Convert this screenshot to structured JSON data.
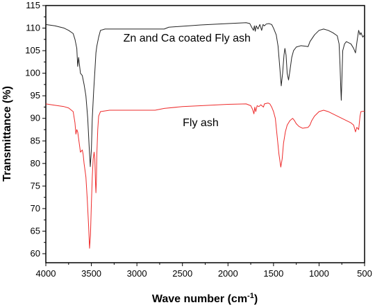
{
  "chart_data": {
    "type": "line",
    "xlabel": "Wave number (cm",
    "xlabel_sup": "-1",
    "xlabel_close": ")",
    "ylabel": "Transmittance (%)",
    "xlim": [
      4000,
      500
    ],
    "ylim": [
      58,
      115
    ],
    "x_ticks": [
      "4000",
      "3500",
      "3000",
      "2500",
      "2000",
      "1500",
      "1000",
      "500"
    ],
    "y_ticks": [
      "60",
      "65",
      "70",
      "75",
      "80",
      "85",
      "90",
      "95",
      "100",
      "105",
      "110",
      "115"
    ],
    "grid": false,
    "annotations": [
      {
        "text": "Zn and Ca coated Fly ash",
        "x": 2450,
        "y": 107
      },
      {
        "text": "Fly ash",
        "x": 2300,
        "y": 88.3
      }
    ],
    "series": [
      {
        "color": "#222222",
        "points": [
          [
            4000,
            110.8
          ],
          [
            3900,
            110.5
          ],
          [
            3800,
            110.0
          ],
          [
            3750,
            109.5
          ],
          [
            3700,
            108.8
          ],
          [
            3680,
            107.5
          ],
          [
            3660,
            105.5
          ],
          [
            3650,
            101.5
          ],
          [
            3640,
            103.5
          ],
          [
            3620,
            100.0
          ],
          [
            3600,
            99.5
          ],
          [
            3580,
            97.5
          ],
          [
            3560,
            95.0
          ],
          [
            3540,
            90.0
          ],
          [
            3525,
            84.0
          ],
          [
            3512,
            79.3
          ],
          [
            3500,
            83.0
          ],
          [
            3490,
            90.0
          ],
          [
            3475,
            96.0
          ],
          [
            3460,
            101.0
          ],
          [
            3450,
            104.5
          ],
          [
            3440,
            106.0
          ],
          [
            3420,
            108.0
          ],
          [
            3400,
            109.5
          ],
          [
            3350,
            109.8
          ],
          [
            3000,
            109.8
          ],
          [
            2700,
            109.8
          ],
          [
            2650,
            110.2
          ],
          [
            2300,
            110.7
          ],
          [
            2000,
            111.0
          ],
          [
            1800,
            111.2
          ],
          [
            1760,
            111.0
          ],
          [
            1740,
            110.2
          ],
          [
            1720,
            109.5
          ],
          [
            1710,
            110.5
          ],
          [
            1700,
            109.3
          ],
          [
            1690,
            110.5
          ],
          [
            1670,
            109.8
          ],
          [
            1650,
            110.8
          ],
          [
            1630,
            109.5
          ],
          [
            1615,
            110.8
          ],
          [
            1600,
            110.5
          ],
          [
            1580,
            110.9
          ],
          [
            1550,
            111.0
          ],
          [
            1520,
            110.8
          ],
          [
            1500,
            110.0
          ],
          [
            1470,
            108.5
          ],
          [
            1450,
            106.0
          ],
          [
            1430,
            101.0
          ],
          [
            1415,
            97.2
          ],
          [
            1400,
            100.0
          ],
          [
            1385,
            104.0
          ],
          [
            1375,
            105.5
          ],
          [
            1362,
            104.0
          ],
          [
            1350,
            100.0
          ],
          [
            1335,
            98.5
          ],
          [
            1320,
            100.5
          ],
          [
            1300,
            103.5
          ],
          [
            1280,
            105.0
          ],
          [
            1250,
            105.8
          ],
          [
            1200,
            106.1
          ],
          [
            1150,
            106.0
          ],
          [
            1120,
            105.9
          ],
          [
            1100,
            107.0
          ],
          [
            1050,
            108.5
          ],
          [
            1000,
            109.5
          ],
          [
            950,
            109.8
          ],
          [
            900,
            109.5
          ],
          [
            850,
            109.0
          ],
          [
            800,
            108.3
          ],
          [
            780,
            106.5
          ],
          [
            770,
            102.0
          ],
          [
            762,
            97.0
          ],
          [
            756,
            94.0
          ],
          [
            750,
            98.0
          ],
          [
            740,
            105.0
          ],
          [
            720,
            106.5
          ],
          [
            700,
            107.0
          ],
          [
            650,
            106.5
          ],
          [
            620,
            105.5
          ],
          [
            600,
            104.5
          ],
          [
            580,
            107.5
          ],
          [
            565,
            109.5
          ],
          [
            550,
            108.5
          ],
          [
            540,
            109.0
          ],
          [
            520,
            108.0
          ],
          [
            500,
            108.5
          ]
        ]
      },
      {
        "color": "#ee2a2a",
        "points": [
          [
            4000,
            93.2
          ],
          [
            3900,
            92.9
          ],
          [
            3800,
            92.6
          ],
          [
            3750,
            92.3
          ],
          [
            3700,
            91.5
          ],
          [
            3680,
            89.0
          ],
          [
            3670,
            86.5
          ],
          [
            3660,
            87.5
          ],
          [
            3650,
            87.0
          ],
          [
            3640,
            85.5
          ],
          [
            3630,
            84.0
          ],
          [
            3620,
            82.5
          ],
          [
            3600,
            83.0
          ],
          [
            3590,
            82.0
          ],
          [
            3580,
            80.0
          ],
          [
            3560,
            77.0
          ],
          [
            3545,
            72.0
          ],
          [
            3530,
            66.0
          ],
          [
            3520,
            61.2
          ],
          [
            3510,
            64.0
          ],
          [
            3500,
            71.0
          ],
          [
            3490,
            77.0
          ],
          [
            3480,
            81.0
          ],
          [
            3470,
            82.5
          ],
          [
            3462,
            81.0
          ],
          [
            3455,
            76.0
          ],
          [
            3450,
            73.5
          ],
          [
            3445,
            76.0
          ],
          [
            3440,
            82.0
          ],
          [
            3430,
            87.5
          ],
          [
            3420,
            90.5
          ],
          [
            3400,
            91.5
          ],
          [
            3300,
            91.8
          ],
          [
            3000,
            91.8
          ],
          [
            2800,
            91.8
          ],
          [
            2700,
            92.2
          ],
          [
            2500,
            92.6
          ],
          [
            2300,
            92.8
          ],
          [
            2000,
            93.1
          ],
          [
            1800,
            93.2
          ],
          [
            1750,
            92.8
          ],
          [
            1730,
            92.0
          ],
          [
            1715,
            91.0
          ],
          [
            1705,
            92.5
          ],
          [
            1695,
            91.5
          ],
          [
            1680,
            92.8
          ],
          [
            1660,
            92.6
          ],
          [
            1640,
            93.0
          ],
          [
            1610,
            92.5
          ],
          [
            1600,
            93.2
          ],
          [
            1560,
            93.4
          ],
          [
            1540,
            93.2
          ],
          [
            1520,
            92.5
          ],
          [
            1500,
            91.5
          ],
          [
            1480,
            90.0
          ],
          [
            1460,
            86.0
          ],
          [
            1440,
            82.0
          ],
          [
            1420,
            79.2
          ],
          [
            1405,
            81.0
          ],
          [
            1390,
            84.5
          ],
          [
            1370,
            87.0
          ],
          [
            1350,
            88.5
          ],
          [
            1320,
            89.5
          ],
          [
            1290,
            90.0
          ],
          [
            1270,
            89.5
          ],
          [
            1250,
            88.8
          ],
          [
            1220,
            88.2
          ],
          [
            1180,
            87.8
          ],
          [
            1150,
            87.9
          ],
          [
            1120,
            88.0
          ],
          [
            1100,
            88.5
          ],
          [
            1080,
            89.5
          ],
          [
            1050,
            90.5
          ],
          [
            1000,
            91.5
          ],
          [
            950,
            91.8
          ],
          [
            900,
            91.5
          ],
          [
            850,
            91.0
          ],
          [
            800,
            90.5
          ],
          [
            750,
            90.0
          ],
          [
            700,
            89.5
          ],
          [
            650,
            89.0
          ],
          [
            620,
            88.5
          ],
          [
            600,
            87.0
          ],
          [
            585,
            88.0
          ],
          [
            565,
            87.5
          ],
          [
            550,
            90.5
          ],
          [
            540,
            91.5
          ],
          [
            500,
            91.6
          ]
        ]
      }
    ]
  }
}
